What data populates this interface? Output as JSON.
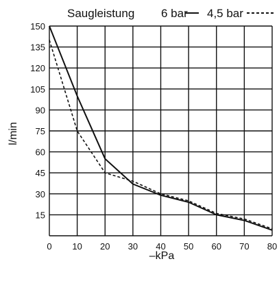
{
  "chart_data": {
    "type": "line",
    "title": "Saugleistung",
    "xlabel": "–kPa",
    "ylabel": "l/min",
    "xlim": [
      0,
      80
    ],
    "ylim": [
      0,
      150
    ],
    "x_ticks": [
      "0",
      "10",
      "20",
      "30",
      "40",
      "50",
      "60",
      "70",
      "80"
    ],
    "y_ticks": [
      "15",
      "30",
      "45",
      "60",
      "75",
      "90",
      "105",
      "120",
      "135",
      "150"
    ],
    "grid": true,
    "legend_position": "top-right",
    "series": [
      {
        "name": "6 bar",
        "style": "solid",
        "color": "#111111",
        "x": [
          0,
          10,
          20,
          30,
          40,
          50,
          60,
          70,
          80
        ],
        "y": [
          150,
          100,
          55,
          37,
          29,
          24,
          15,
          11,
          4
        ]
      },
      {
        "name": "4,5 bar",
        "style": "dashed",
        "color": "#111111",
        "x": [
          0,
          10,
          20,
          30,
          40,
          50,
          60,
          70,
          80
        ],
        "y": [
          140,
          75,
          45,
          39,
          30,
          25,
          16,
          12,
          5
        ]
      }
    ]
  }
}
